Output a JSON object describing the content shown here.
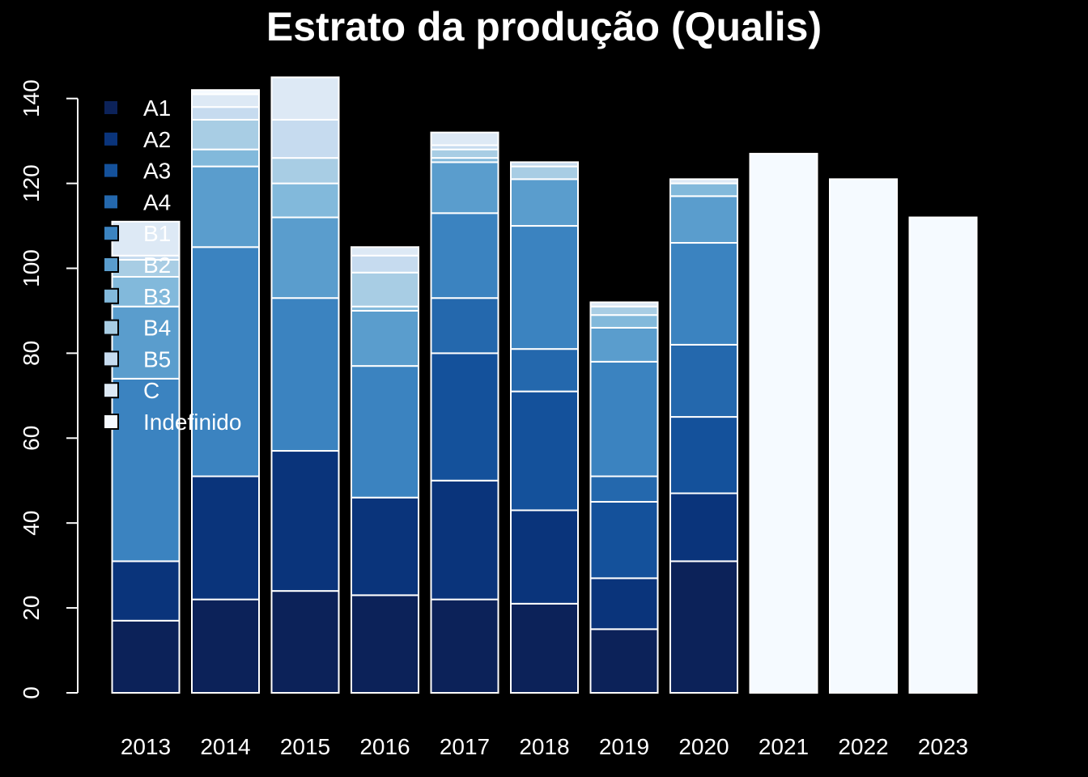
{
  "chart_data": {
    "type": "bar",
    "stacked": true,
    "title": "Estrato da produção (Qualis)",
    "xlabel": "",
    "ylabel": "",
    "ylim": [
      0,
      145
    ],
    "yticks": [
      0,
      20,
      40,
      60,
      80,
      100,
      120,
      140
    ],
    "grid": false,
    "legend_position": "top-left",
    "categories": [
      "2013",
      "2014",
      "2015",
      "2016",
      "2017",
      "2018",
      "2019",
      "2020",
      "2021",
      "2022",
      "2023"
    ],
    "series": [
      {
        "name": "A1",
        "color": "#0c2259",
        "values": [
          17,
          22,
          24,
          23,
          22,
          21,
          15,
          31,
          0,
          0,
          0
        ]
      },
      {
        "name": "A2",
        "color": "#0a347b",
        "values": [
          14,
          29,
          33,
          23,
          28,
          22,
          12,
          16,
          0,
          0,
          0
        ]
      },
      {
        "name": "A3",
        "color": "#14519b",
        "values": [
          0,
          0,
          0,
          0,
          30,
          28,
          18,
          18,
          0,
          0,
          0
        ]
      },
      {
        "name": "A4",
        "color": "#2468ad",
        "values": [
          0,
          0,
          0,
          0,
          13,
          10,
          6,
          17,
          0,
          0,
          0
        ]
      },
      {
        "name": "B1",
        "color": "#3b83c0",
        "values": [
          43,
          54,
          36,
          31,
          20,
          29,
          27,
          24,
          0,
          0,
          0
        ]
      },
      {
        "name": "B2",
        "color": "#5a9dcd",
        "values": [
          17,
          19,
          19,
          13,
          12,
          11,
          8,
          11,
          0,
          0,
          0
        ]
      },
      {
        "name": "B3",
        "color": "#82b9db",
        "values": [
          7,
          4,
          8,
          1,
          1,
          0,
          3,
          3,
          0,
          0,
          0
        ]
      },
      {
        "name": "B4",
        "color": "#a8cde4",
        "values": [
          4,
          7,
          6,
          8,
          2,
          3,
          2,
          0,
          0,
          0,
          0
        ]
      },
      {
        "name": "B5",
        "color": "#c6dbef",
        "values": [
          1,
          3,
          9,
          4,
          1,
          1,
          0,
          0,
          0,
          0,
          0
        ]
      },
      {
        "name": "C",
        "color": "#dde9f5",
        "values": [
          8,
          3,
          10,
          2,
          3,
          0,
          1,
          1,
          0,
          0,
          0
        ]
      },
      {
        "name": "Indefinido",
        "color": "#f5faff",
        "values": [
          0,
          1,
          0,
          0,
          0,
          0,
          0,
          0,
          127,
          121,
          112
        ]
      }
    ]
  }
}
